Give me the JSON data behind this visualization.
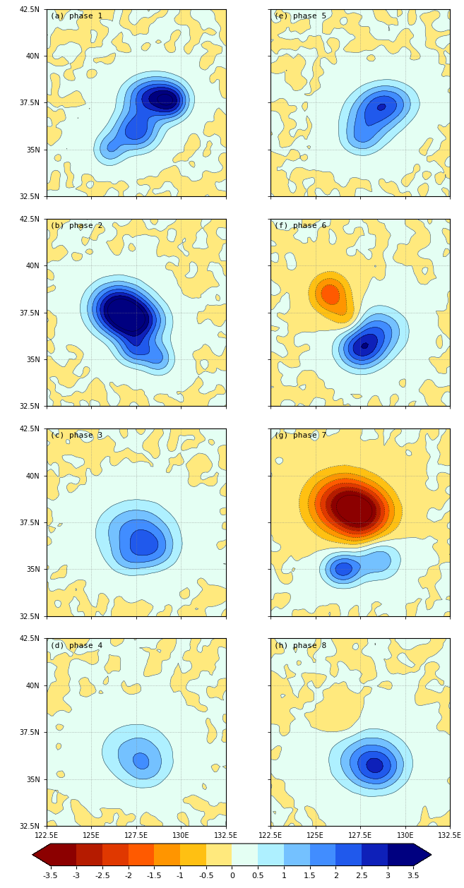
{
  "lon_min": 122.5,
  "lon_max": 132.5,
  "lat_min": 32.5,
  "lat_max": 42.5,
  "lon_ticks": [
    122.5,
    125.0,
    127.5,
    130.0,
    132.5
  ],
  "lat_ticks": [
    32.5,
    35.0,
    37.5,
    40.0,
    42.5
  ],
  "lon_labels": [
    "122.5E",
    "125E",
    "127.5E",
    "130E",
    "132.5E"
  ],
  "lat_labels": [
    "32.5N",
    "35N",
    "37.5N",
    "40N",
    "42.5N"
  ],
  "panels": [
    {
      "label": "(a) phase 1",
      "row": 0,
      "col": 0
    },
    {
      "label": "(b) phase 2",
      "row": 1,
      "col": 0
    },
    {
      "label": "(c) phase 3",
      "row": 2,
      "col": 0
    },
    {
      "label": "(d) phase 4",
      "row": 3,
      "col": 0
    },
    {
      "label": "(e) phase 5",
      "row": 0,
      "col": 1
    },
    {
      "label": "(f) phase 6",
      "row": 1,
      "col": 1
    },
    {
      "label": "(g) phase 7",
      "row": 2,
      "col": 1
    },
    {
      "label": "(h) phase 8",
      "row": 3,
      "col": 1
    }
  ],
  "colorbar_levels": [
    -3.5,
    -3.0,
    -2.5,
    -2.0,
    -1.5,
    -1.0,
    -0.5,
    0.0,
    0.5,
    1.0,
    1.5,
    2.0,
    2.5,
    3.0,
    3.5
  ],
  "colorbar_labels": [
    "-3.5",
    "-3",
    "-2.5",
    "-2",
    "-1.5",
    "-1",
    "-0.5",
    "0",
    "0.5",
    "1",
    "1.5",
    "2",
    "2.5",
    "3",
    "3.5"
  ],
  "contour_interval": 0.5,
  "figsize": [
    6.57,
    12.58
  ],
  "dpi": 100
}
